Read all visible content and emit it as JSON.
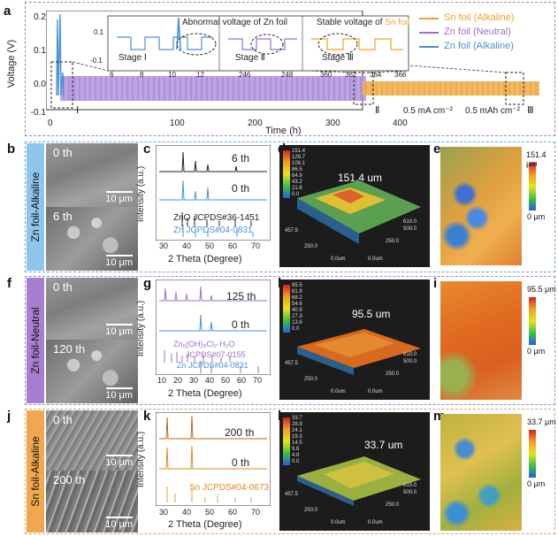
{
  "panel_a": {
    "letter": "a",
    "ylabel": "Voltage (V)",
    "xlabel": "Time (h)",
    "yticks": [
      "0.2",
      "0.1",
      "0.0",
      "-0.1"
    ],
    "xticks": [
      "0",
      "100",
      "200",
      "300",
      "400"
    ],
    "inset_ticks_1": [
      "6",
      "8",
      "10",
      "12"
    ],
    "inset_ticks_2": [
      "246",
      "248"
    ],
    "inset_ticks_3": [
      "360",
      "362",
      "364",
      "366"
    ],
    "inset_ytick_top": "0.1",
    "inset_ytick_bot": "-0.1",
    "stage_1": "Stage Ⅰ",
    "stage_2": "Stage Ⅱ",
    "stage_3": "Stage Ⅲ",
    "annot_abnormal": "Abnormal voltage of Zn foil",
    "annot_stable_prefix": "Stable voltage of ",
    "annot_stable_suffix": "Sn foil",
    "roman_1": "Ⅰ",
    "roman_2": "Ⅱ",
    "roman_3": "Ⅲ",
    "current_label": "0.5 mA cm⁻²",
    "capacity_label": "0.5 mAh cm⁻²",
    "legend": [
      {
        "label": "Sn foil (Alkaline)",
        "color": "#f0a030"
      },
      {
        "label": "Zn foil (Neutral)",
        "color": "#9b6fd0"
      },
      {
        "label": "Zn foil (Alkaline)",
        "color": "#4a90d9"
      }
    ]
  },
  "row_b": {
    "side_label": "Zn foil-Alkaline",
    "side_color": "#8ec5ea",
    "box_color": "#6aa8d8",
    "letters": {
      "b": "b",
      "c": "c",
      "d": "d",
      "e": "e"
    },
    "sem_top": "0 th",
    "sem_bot": "6 th",
    "scale": "10 μm",
    "xrd_top": "6 th",
    "xrd_mid": "0 th",
    "xrd_ref1": "ZnO JCPDS#36-1451",
    "xrd_ref2": "Zn JCPDS#04-0831",
    "xrd_ylabel": "Intensity (a.u.)",
    "xrd_xlabel": "2 Theta (Degree)",
    "xrd_xticks": [
      "30",
      "40",
      "50",
      "60",
      "70"
    ],
    "height": "151.4 um",
    "map_max": "151.4 μm",
    "map_min": "0 μm",
    "cb_vals": [
      "151.4",
      "129.7",
      "108.1",
      "86.5",
      "64.9",
      "43.2",
      "21.6",
      "0.0"
    ],
    "axis_labels": [
      "457.5",
      "250.0",
      "0.0um",
      "0.0um",
      "610.0",
      "500.0",
      "250.0"
    ]
  },
  "row_f": {
    "side_label": "Zn foil-Neutral",
    "side_color": "#a67fd0",
    "box_color": "#8a8fd8",
    "letters": {
      "f": "f",
      "g": "g",
      "h": "h",
      "i": "i"
    },
    "sem_top": "0 th",
    "sem_bot": "120 th",
    "scale": "10 μm",
    "xrd_top": "125 th",
    "xrd_mid": "0 th",
    "xrd_ref1": "Zn₅(OH)₈Cl₂·H₂O",
    "xrd_ref1b": "JCPDS#07-0155",
    "xrd_ref2": "Zn JCPDS#04-0831",
    "xrd_ylabel": "Intensity (a.u.)",
    "xrd_xlabel": "2 Theta (Degree)",
    "xrd_xticks": [
      "10",
      "20",
      "30",
      "40",
      "50",
      "60",
      "70"
    ],
    "height": "95.5 um",
    "map_max": "95.5 μm",
    "map_min": "0 μm",
    "cb_vals": [
      "95.5",
      "81.9",
      "68.2",
      "54.6",
      "40.9",
      "27.3",
      "13.6",
      "0.0"
    ],
    "axis_labels": [
      "457.5",
      "250.0",
      "0.0um",
      "0.0um",
      "610.0",
      "500.0",
      "250.0"
    ]
  },
  "row_j": {
    "side_label": "Sn foil-Alkaline",
    "side_color": "#f0a850",
    "box_color": "#e0a070",
    "letters": {
      "j": "j",
      "k": "k",
      "l": "l",
      "m": "m"
    },
    "sem_top": "0 th",
    "sem_bot": "200 th",
    "scale": "10 μm",
    "xrd_top": "200 th",
    "xrd_mid": "0 th",
    "xrd_ref1": "Sn JCPDS#04-0673",
    "xrd_ylabel": "Intensity (a.u.)",
    "xrd_xlabel": "2 Theta (Degree)",
    "xrd_xticks": [
      "30",
      "40",
      "50",
      "60",
      "70"
    ],
    "height": "33.7 um",
    "map_max": "33.7 μm",
    "map_min": "0 μm",
    "cb_vals": [
      "33.7",
      "28.9",
      "24.1",
      "19.3",
      "14.5",
      "9.6",
      "4.8",
      "0.0"
    ],
    "axis_labels": [
      "457.5",
      "250.0",
      "0.0um",
      "0.0um",
      "610.0",
      "500.0",
      "250.0"
    ]
  }
}
